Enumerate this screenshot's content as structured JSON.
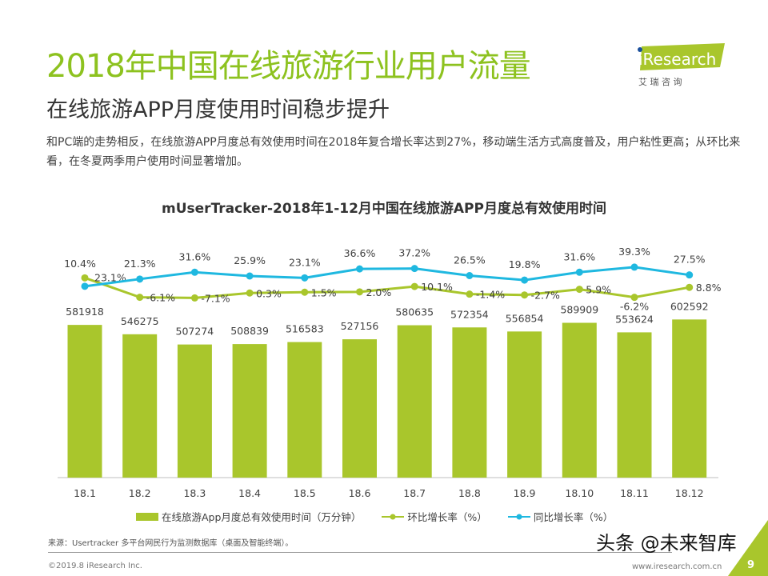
{
  "header": {
    "title": "2018年中国在线旅游行业用户流量",
    "subtitle": "在线旅游APP月度使用时间稳步提升",
    "description": "和PC端的走势相反，在线旅游APP月度总有效使用时间在2018年复合增长率达到27%，移动端生活方式高度普及，用户粘性更高；从环比来看，在冬夏两季用户使用时间显著增加。"
  },
  "logo": {
    "brand": "iResearch",
    "chinese": "艾 瑞 咨 询",
    "color": "#a9c62c"
  },
  "chart_data": {
    "type": "bar",
    "title": "mUserTracker-2018年1-12月中国在线旅游APP月度总有效使用时间",
    "categories": [
      "18.1",
      "18.2",
      "18.3",
      "18.4",
      "18.5",
      "18.6",
      "18.7",
      "18.8",
      "18.9",
      "18.10",
      "18.11",
      "18.12"
    ],
    "series": [
      {
        "name": "在线旅游App月度总有效使用时间（万分钟）",
        "type": "bar",
        "color": "#a9c62c",
        "values": [
          581918,
          546275,
          507274,
          508839,
          516583,
          527156,
          580635,
          572354,
          556854,
          589909,
          553624,
          602592
        ],
        "labels": [
          "581918",
          "546275",
          "507274",
          "508839",
          "516583",
          "527156",
          "580635",
          "572354",
          "556854",
          "589909",
          "553624",
          "602592"
        ]
      },
      {
        "name": "环比增长率（%）",
        "type": "line",
        "color": "#a9c62c",
        "values": [
          23.1,
          -6.1,
          -7.1,
          0.3,
          1.5,
          2.0,
          10.1,
          -1.4,
          -2.7,
          5.9,
          -6.2,
          8.8
        ],
        "labels": [
          "23.1%",
          "-6.1%",
          "-7.1%",
          "0.3%",
          "1.5%",
          "2.0%",
          "10.1%",
          "-1.4%",
          "-2.7%",
          "5.9%",
          "-6.2%",
          "8.8%"
        ]
      },
      {
        "name": "同比增长率（%）",
        "type": "line",
        "color": "#1fb8e0",
        "values": [
          10.4,
          21.3,
          31.6,
          25.9,
          23.1,
          36.6,
          37.2,
          26.5,
          19.8,
          31.6,
          39.3,
          27.5
        ],
        "labels": [
          "10.4%",
          "21.3%",
          "31.6%",
          "25.9%",
          "23.1%",
          "36.6%",
          "37.2%",
          "26.5%",
          "19.8%",
          "31.6%",
          "39.3%",
          "27.5%"
        ]
      }
    ],
    "grid": false,
    "legend": "bottom"
  },
  "footer": {
    "source": "来源：Usertracker 多平台网民行为监测数据库（桌面及智能终端）。",
    "copyright": "©2019.8 iResearch Inc.",
    "site": "www.iresearch.com.cn",
    "page": "9",
    "watermark": "头条 @未来智库"
  }
}
